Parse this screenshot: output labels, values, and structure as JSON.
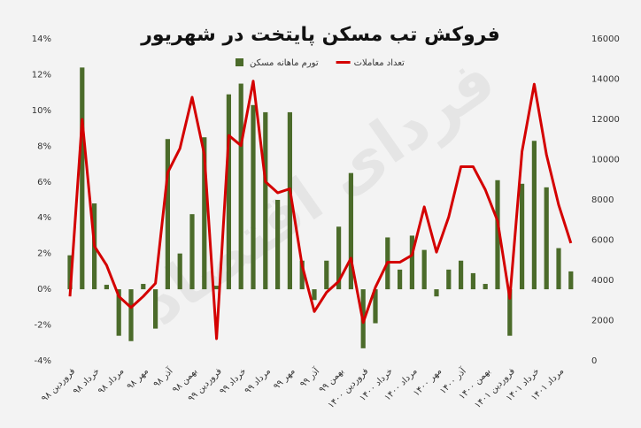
{
  "chart_data": {
    "type": "combo",
    "title": "فروکش تب مسکن پایتخت در شهریور",
    "watermark": "فردای اقتصاد",
    "categories": [
      "فروردین ۹۸",
      null,
      "خرداد ۹۸",
      null,
      "مرداد ۹۸",
      null,
      "مهر ۹۸",
      null,
      "آذر ۹۸",
      null,
      "بهمن ۹۸",
      null,
      "فروردین ۹۹",
      null,
      "خرداد ۹۹",
      null,
      "مرداد ۹۹",
      null,
      "مهر ۹۹",
      null,
      "آذر ۹۹",
      null,
      "بهمن ۹۹",
      null,
      "فروردین ۱۴۰۰",
      null,
      "خرداد ۱۴۰۰",
      null,
      "مرداد ۱۴۰۰",
      null,
      "مهر ۱۴۰۰",
      null,
      "آذر ۱۴۰۰",
      null,
      "بهمن ۱۴۰۰",
      null,
      "فروردین ۱۴۰۱",
      null,
      "خرداد ۱۴۰۱",
      null,
      "مرداد ۱۴۰۱",
      null
    ],
    "series": [
      {
        "name": "تورم ماهانه مسکن",
        "type": "bar",
        "color": "#4b6b2a",
        "values": [
          1.9,
          12.4,
          4.8,
          0.25,
          -2.6,
          -2.9,
          0.3,
          -2.2,
          8.4,
          2.0,
          4.2,
          8.5,
          0.2,
          10.9,
          11.5,
          10.3,
          9.9,
          5.0,
          9.9,
          1.6,
          -0.6,
          1.6,
          3.5,
          6.5,
          -3.3,
          -1.9,
          2.9,
          1.1,
          3.0,
          2.2,
          -0.4,
          1.1,
          1.6,
          0.9,
          0.3,
          6.1,
          -2.6,
          5.9,
          8.3,
          5.7,
          2.3,
          1.0
        ]
      },
      {
        "name": "تعداد معاملات",
        "type": "line",
        "axis": "y2",
        "color": "#d40000",
        "values": [
          3200,
          12000,
          5700,
          4750,
          3200,
          2650,
          3200,
          3850,
          9350,
          10550,
          13100,
          10250,
          1100,
          11200,
          10700,
          13900,
          8900,
          8350,
          8550,
          4750,
          2450,
          3400,
          3950,
          5100,
          1900,
          3650,
          4900,
          4900,
          5250,
          7650,
          5400,
          7150,
          9650,
          9650,
          8500,
          6950,
          3100,
          10400,
          13750,
          10250,
          7750,
          5850
        ]
      }
    ],
    "ylim": [
      -4,
      14
    ],
    "yticks": [
      {
        "value": -4,
        "label": "-4%"
      },
      {
        "value": -2,
        "label": "-2%"
      },
      {
        "value": 0,
        "label": "0%"
      },
      {
        "value": 2,
        "label": "2%"
      },
      {
        "value": 4,
        "label": "4%"
      },
      {
        "value": 6,
        "label": "6%"
      },
      {
        "value": 8,
        "label": "8%"
      },
      {
        "value": 10,
        "label": "10%"
      },
      {
        "value": 12,
        "label": "12%"
      },
      {
        "value": 14,
        "label": "14%"
      }
    ],
    "y2lim": [
      0,
      16000
    ],
    "y2ticks": [
      0,
      2000,
      4000,
      6000,
      8000,
      10000,
      12000,
      14000,
      16000
    ]
  }
}
